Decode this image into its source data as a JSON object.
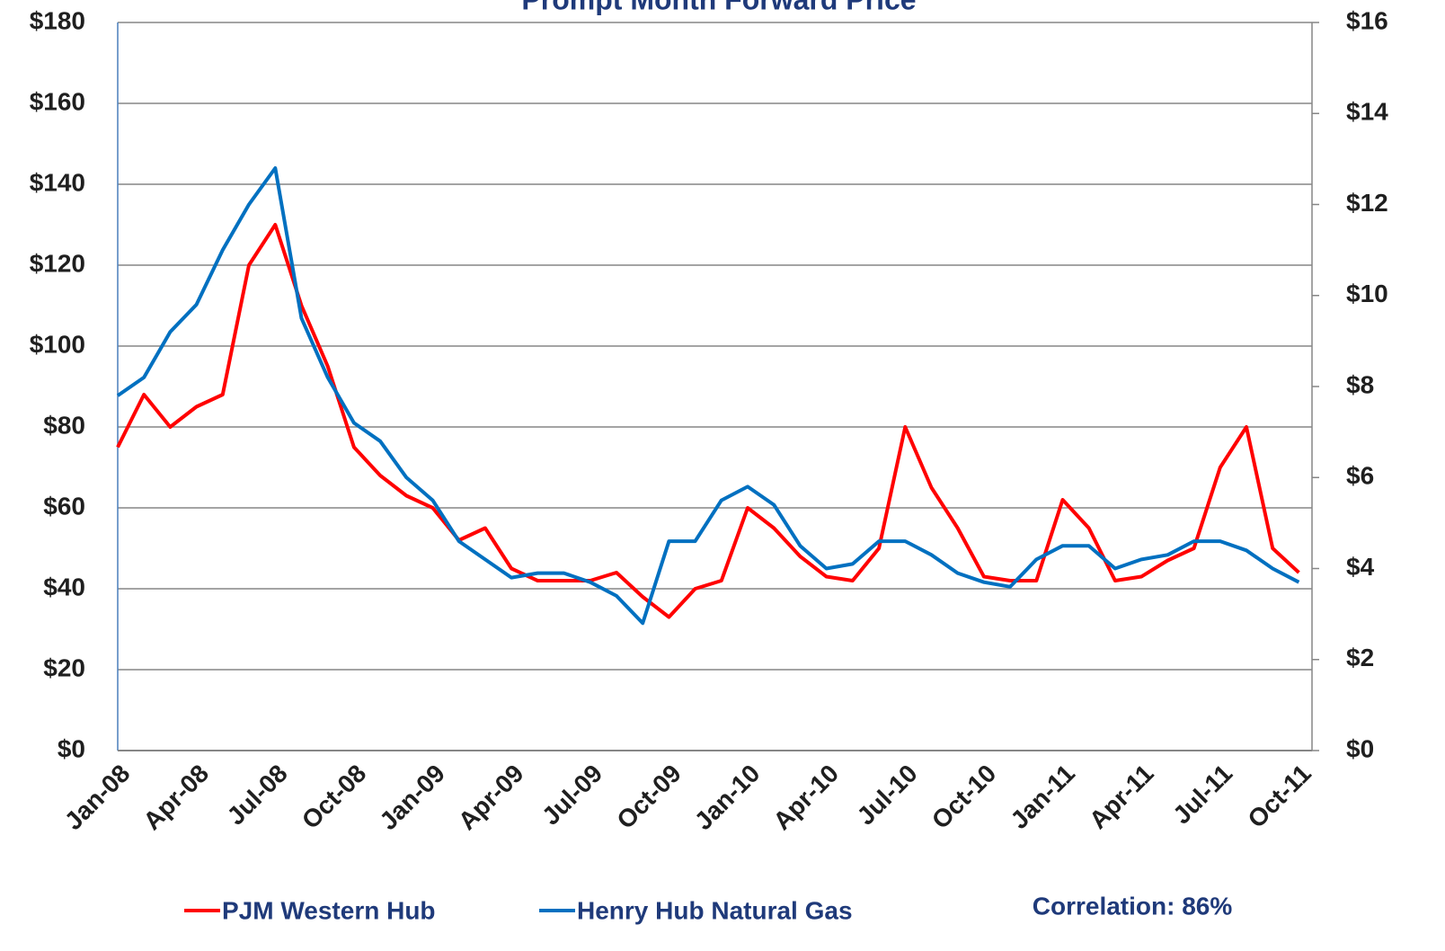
{
  "chart_data": {
    "type": "line",
    "title": "Prompt Month Forward Price",
    "annotation": "Correlation: 86%",
    "categories": [
      "Jan-08",
      null,
      null,
      "Apr-08",
      null,
      null,
      "Jul-08",
      null,
      null,
      "Oct-08",
      null,
      null,
      "Jan-09",
      null,
      null,
      "Apr-09",
      null,
      null,
      "Jul-09",
      null,
      null,
      "Oct-09",
      null,
      null,
      "Jan-10",
      null,
      null,
      "Apr-10",
      null,
      null,
      "Jul-10",
      null,
      null,
      "Oct-10",
      null,
      null,
      "Jan-11",
      null,
      null,
      "Apr-11",
      null,
      null,
      "Jul-11",
      null,
      null,
      "Oct-11"
    ],
    "series": [
      {
        "name": "PJM Western Hub",
        "color": "#ff0000",
        "axis": "y",
        "values": [
          75,
          88,
          80,
          85,
          88,
          120,
          130,
          110,
          95,
          75,
          68,
          63,
          60,
          52,
          55,
          45,
          42,
          42,
          42,
          44,
          38,
          33,
          40,
          42,
          60,
          55,
          48,
          43,
          42,
          50,
          80,
          65,
          55,
          43,
          42,
          42,
          62,
          55,
          42,
          43,
          47,
          50,
          70,
          80,
          50,
          44
        ]
      },
      {
        "name": "Henry Hub Natural Gas",
        "color": "#0070c0",
        "axis": "y2",
        "values": [
          7.8,
          8.2,
          9.2,
          9.8,
          11,
          12,
          12.8,
          9.5,
          8.2,
          7.2,
          6.8,
          6.0,
          5.5,
          4.6,
          4.2,
          3.8,
          3.9,
          3.9,
          3.7,
          3.4,
          2.8,
          4.6,
          4.6,
          5.5,
          5.8,
          5.4,
          4.5,
          4.0,
          4.1,
          4.6,
          4.6,
          4.3,
          3.9,
          3.7,
          3.6,
          4.2,
          4.5,
          4.5,
          4.0,
          4.2,
          4.3,
          4.6,
          4.6,
          4.4,
          4.0,
          3.7
        ]
      }
    ],
    "ylim": [
      0,
      180
    ],
    "yticks": [
      {
        "value": 0,
        "label": "$0"
      },
      {
        "value": 20,
        "label": "$20"
      },
      {
        "value": 40,
        "label": "$40"
      },
      {
        "value": 60,
        "label": "$60"
      },
      {
        "value": 80,
        "label": "$80"
      },
      {
        "value": 100,
        "label": "$100"
      },
      {
        "value": 120,
        "label": "$120"
      },
      {
        "value": 140,
        "label": "$140"
      },
      {
        "value": 160,
        "label": "$160"
      },
      {
        "value": 180,
        "label": "$180"
      }
    ],
    "y2lim": [
      0,
      16
    ],
    "y2ticks": [
      {
        "value": 0,
        "label": "$0"
      },
      {
        "value": 2,
        "label": "$2"
      },
      {
        "value": 4,
        "label": "$4"
      },
      {
        "value": 6,
        "label": "$6"
      },
      {
        "value": 8,
        "label": "$8"
      },
      {
        "value": 10,
        "label": "$10"
      },
      {
        "value": 12,
        "label": "$12"
      },
      {
        "value": 14,
        "label": "$14"
      },
      {
        "value": 16,
        "label": "$16"
      }
    ],
    "grid": true,
    "legend": "bottom"
  }
}
